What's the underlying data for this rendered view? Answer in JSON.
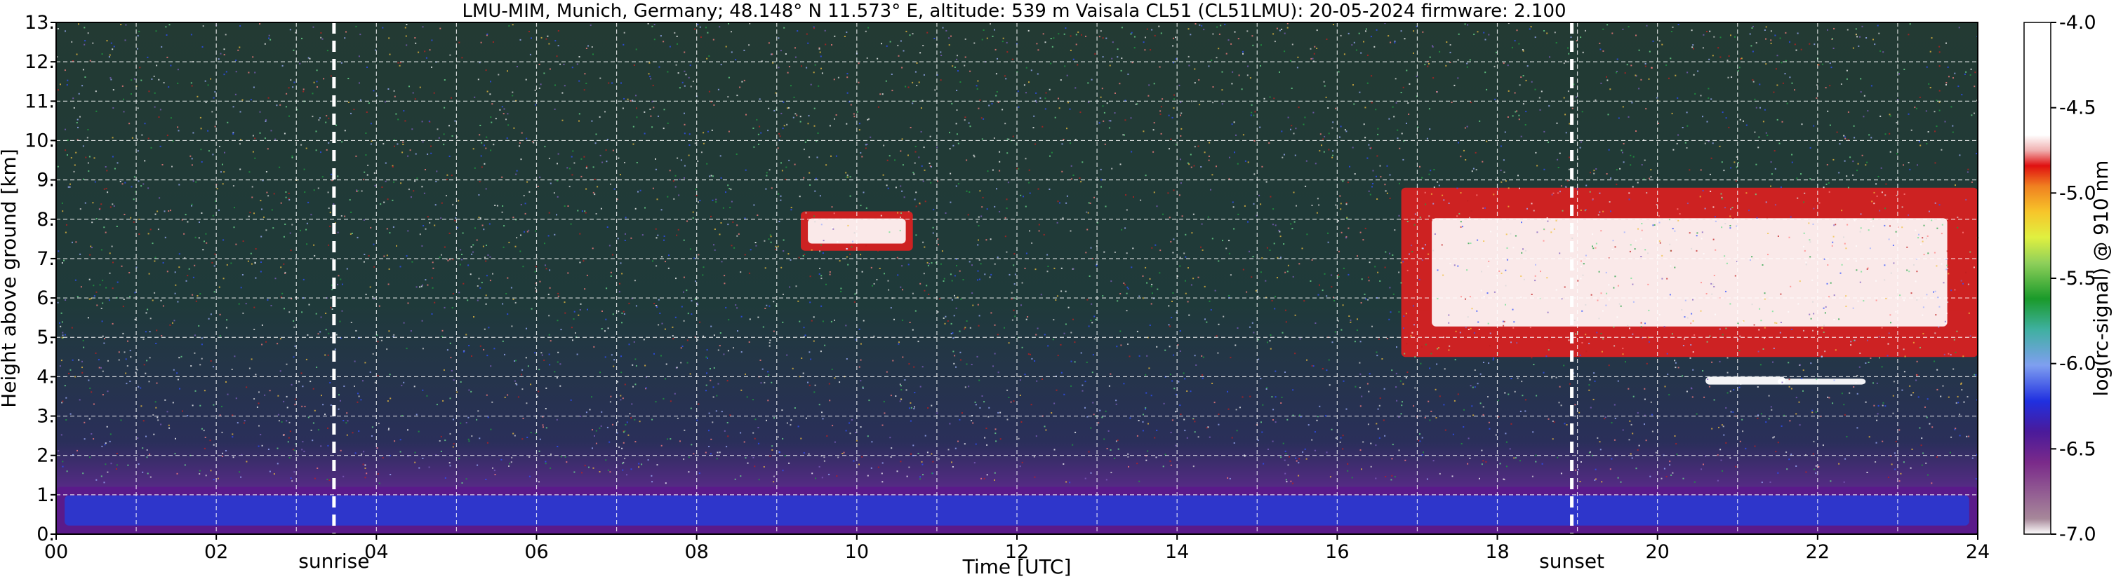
{
  "chart_data": {
    "type": "heatmap",
    "title": "LMU-MIM, Munich, Germany; 48.148° N 11.573° E, altitude: 539 m    Vaisala CL51 (CL51LMU): 20-05-2024    firmware: 2.100",
    "xlabel": "Time [UTC]",
    "ylabel": "Height above ground [km]",
    "xlim": [
      0,
      24
    ],
    "ylim": [
      0,
      13
    ],
    "x_ticks": [
      "00",
      "02",
      "04",
      "06",
      "08",
      "10",
      "12",
      "14",
      "16",
      "18",
      "20",
      "22",
      "24"
    ],
    "y_ticks": [
      "0.",
      "1.",
      "2.",
      "3.",
      "4.",
      "5.",
      "6.",
      "7.",
      "8.",
      "9.",
      "10.",
      "11.",
      "12.",
      "13."
    ],
    "grid": true,
    "markers": [
      {
        "label": "sunrise",
        "x": 3.47
      },
      {
        "label": "sunset",
        "x": 18.93
      }
    ],
    "colorbar": {
      "label": "log(rc-signal) @ 910 nm",
      "range": [
        -7.0,
        -4.0
      ],
      "ticks": [
        "-7.0",
        "-6.5",
        "-6.0",
        "-5.5",
        "-5.0",
        "-4.5",
        "-4.0"
      ]
    },
    "features": [
      {
        "name": "boundary layer",
        "x": [
          0,
          24
        ],
        "y": [
          0,
          1.2
        ]
      },
      {
        "name": "cloud layer",
        "x": [
          9.3,
          10.7
        ],
        "y": [
          7.2,
          8.2
        ]
      },
      {
        "name": "cloud layer",
        "x": [
          16.8,
          24
        ],
        "y": [
          4.5,
          8.8
        ]
      },
      {
        "name": "low cloud patch",
        "x": [
          20.6,
          21.6
        ],
        "y": [
          3.8,
          4.0
        ]
      },
      {
        "name": "low cloud patch",
        "x": [
          21.5,
          22.6
        ],
        "y": [
          3.8,
          3.95
        ]
      }
    ]
  }
}
